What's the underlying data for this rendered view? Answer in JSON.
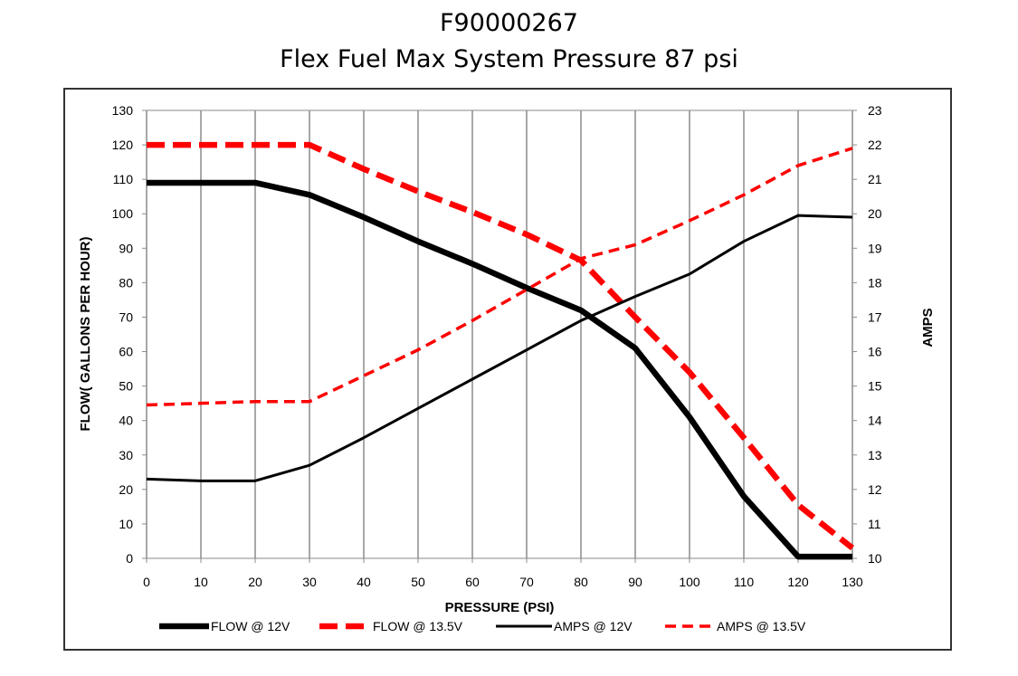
{
  "title_line1": "F90000267",
  "title_line2": "Flex Fuel Max System Pressure 87 psi",
  "chart_data": {
    "type": "line",
    "title": "F90000267 Flex Fuel Max System Pressure 87 psi",
    "xlabel": "PRESSURE (PSI)",
    "ylabel": "FLOW( GALLONS PER HOUR)",
    "y2label": "AMPS",
    "xlim": [
      0,
      130
    ],
    "ylim": [
      0,
      130
    ],
    "y2lim": [
      10,
      23
    ],
    "xticks": [
      0,
      10,
      20,
      30,
      40,
      50,
      60,
      70,
      80,
      90,
      100,
      110,
      120,
      130
    ],
    "yticks": [
      0,
      10,
      20,
      30,
      40,
      50,
      60,
      70,
      80,
      90,
      100,
      110,
      120,
      130
    ],
    "y2ticks": [
      10,
      11,
      12,
      13,
      14,
      15,
      16,
      17,
      18,
      19,
      20,
      21,
      22,
      23
    ],
    "grid": "vertical",
    "legend": "bottom",
    "series": [
      {
        "name": "FLOW @ 12V",
        "axis": "left",
        "color": "#000000",
        "style": "solid-thick",
        "x": [
          0,
          10,
          20,
          30,
          40,
          50,
          60,
          70,
          80,
          90,
          100,
          110,
          120,
          130
        ],
        "values": [
          109,
          109,
          109,
          105.5,
          99,
          92,
          85.5,
          78.5,
          72,
          61,
          41,
          18,
          0.5,
          0.5
        ]
      },
      {
        "name": "FLOW @ 13.5V",
        "axis": "left",
        "color": "#ff0000",
        "style": "dashed-thick",
        "x": [
          0,
          10,
          20,
          30,
          40,
          50,
          60,
          70,
          80,
          90,
          100,
          110,
          120,
          130
        ],
        "values": [
          120,
          120,
          120,
          120,
          113,
          106.5,
          100.5,
          94,
          86.5,
          70,
          54,
          35,
          15.5,
          3
        ]
      },
      {
        "name": "AMPS @ 12V",
        "axis": "right",
        "color": "#000000",
        "style": "solid",
        "x": [
          0,
          10,
          20,
          30,
          40,
          50,
          60,
          70,
          80,
          90,
          100,
          110,
          120,
          130
        ],
        "values": [
          12.3,
          12.25,
          12.25,
          12.7,
          13.5,
          14.35,
          15.2,
          16.05,
          16.9,
          17.6,
          18.25,
          19.2,
          19.95,
          19.9
        ]
      },
      {
        "name": "AMPS @ 13.5V",
        "axis": "right",
        "color": "#ff0000",
        "style": "dashed",
        "x": [
          0,
          10,
          20,
          30,
          40,
          50,
          60,
          70,
          80,
          90,
          100,
          110,
          120,
          130
        ],
        "values": [
          14.45,
          14.5,
          14.55,
          14.55,
          15.3,
          16.05,
          16.9,
          17.8,
          18.7,
          19.1,
          19.8,
          20.55,
          21.4,
          21.9
        ]
      }
    ]
  }
}
